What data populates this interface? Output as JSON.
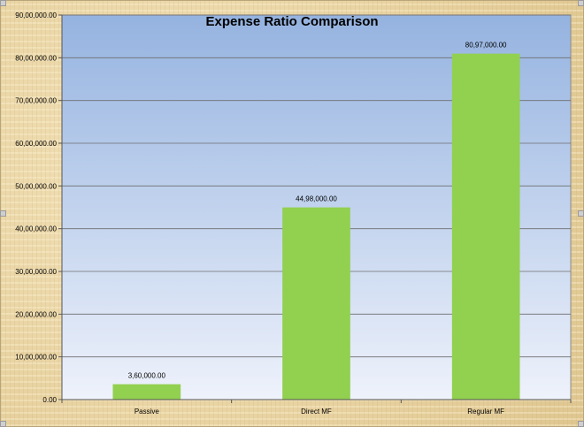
{
  "colors": {
    "bar": "#92d050",
    "plot_top": "#95b3e0",
    "plot_bottom": "#eef2fb",
    "frame": "#ecd9ad",
    "gridline": "#6e6e6e"
  },
  "chart_data": {
    "type": "bar",
    "title": "Expense Ratio Comparison",
    "xlabel": "",
    "ylabel": "",
    "categories": [
      "Passive",
      "Direct MF",
      "Regular MF"
    ],
    "values": [
      360000,
      4498000,
      8097000
    ],
    "value_labels": [
      "3,60,000.00",
      "44,98,000.00",
      "80,97,000.00"
    ],
    "ylim": [
      0,
      9000000
    ],
    "yticks": [
      0,
      1000000,
      2000000,
      3000000,
      4000000,
      5000000,
      6000000,
      7000000,
      8000000,
      9000000
    ],
    "ytick_labels": [
      "0.00",
      "10,00,000.00",
      "20,00,000.00",
      "30,00,000.00",
      "40,00,000.00",
      "50,00,000.00",
      "60,00,000.00",
      "70,00,000.00",
      "80,00,000.00",
      "90,00,000.00"
    ],
    "grid": true,
    "legend": "none"
  }
}
